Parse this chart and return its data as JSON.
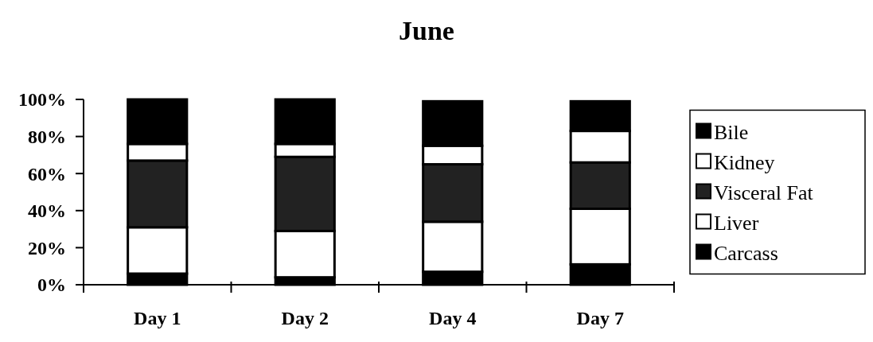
{
  "chart_data": {
    "type": "bar",
    "title": "June",
    "stacked": true,
    "categories": [
      "Day 1",
      "Day 2",
      "Day 4",
      "Day 7"
    ],
    "series": [
      {
        "name": "Carcass",
        "color": "#000000",
        "values": [
          6,
          4,
          7,
          11
        ]
      },
      {
        "name": "Liver",
        "color": "#ffffff",
        "values": [
          25,
          25,
          27,
          30
        ]
      },
      {
        "name": "Visceral Fat",
        "color": "#222222",
        "values": [
          36,
          40,
          31,
          25
        ]
      },
      {
        "name": "Kidney",
        "color": "#ffffff",
        "values": [
          9,
          7,
          10,
          17
        ]
      },
      {
        "name": "Bile",
        "color": "#000000",
        "values": [
          24,
          24,
          24,
          16
        ]
      }
    ],
    "ylim": [
      0,
      100
    ],
    "yticks": [
      {
        "value": 0,
        "label": "0%"
      },
      {
        "value": 20,
        "label": "20%"
      },
      {
        "value": 40,
        "label": "40%"
      },
      {
        "value": 60,
        "label": "60%"
      },
      {
        "value": 80,
        "label": "80%"
      },
      {
        "value": 100,
        "label": "100%"
      }
    ],
    "grid": false,
    "legend": "right"
  }
}
